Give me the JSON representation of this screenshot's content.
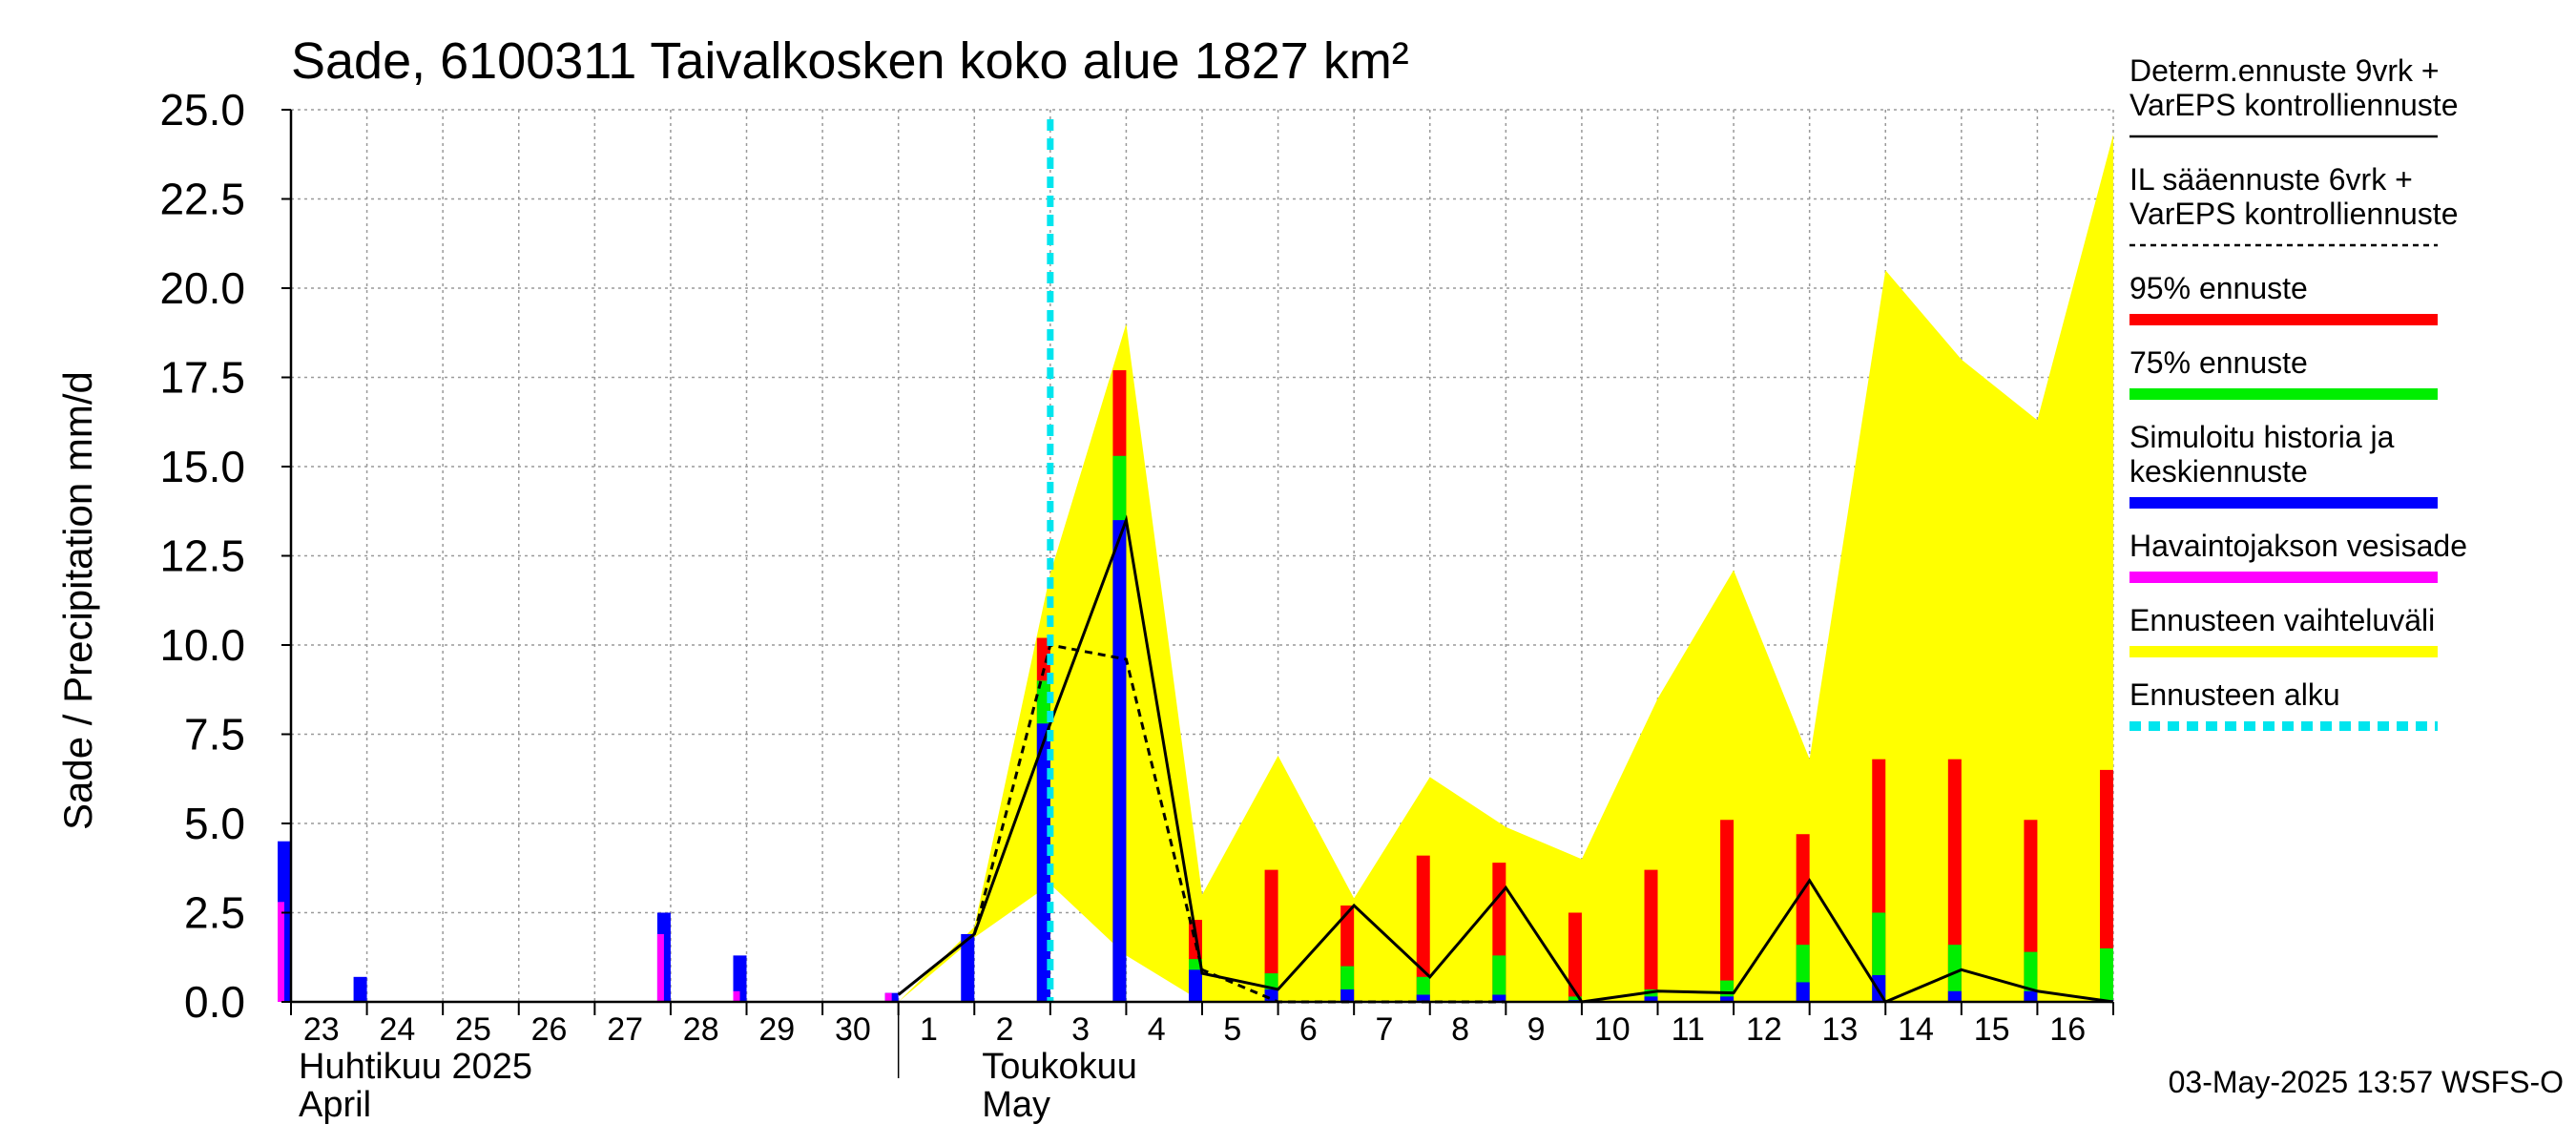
{
  "chart_data": {
    "type": "bar",
    "title": "Sade, 6100311 Taivalkosken koko alue 1827 km²",
    "ylabel": "Sade / Precipitation   mm/d",
    "ylim": [
      0,
      25
    ],
    "yticks": [
      "0.0",
      "2.5",
      "5.0",
      "7.5",
      "10.0",
      "12.5",
      "15.0",
      "17.5",
      "20.0",
      "22.5",
      "25.0"
    ],
    "grid": true,
    "legend_position": "right",
    "x_start": "2025-04-23",
    "x_end": "2025-05-17",
    "x_tick_labels": [
      "23",
      "24",
      "25",
      "26",
      "27",
      "28",
      "29",
      "30",
      "1",
      "2",
      "3",
      "4",
      "5",
      "6",
      "7",
      "8",
      "9",
      "10",
      "11",
      "12",
      "13",
      "14",
      "15",
      "16"
    ],
    "month_labels": [
      {
        "date": "2025-04-23",
        "line1": "Huhtikuu  2025",
        "line2": "April"
      },
      {
        "date": "2025-05-02",
        "line1": "Toukokuu",
        "line2": "May"
      }
    ],
    "month_boundary": "2025-05-01",
    "forecast_start": "2025-05-03",
    "timestamp": "03-May-2025 13:57 WSFS-O",
    "legend": [
      {
        "label": "Determ.ennuste 9vrk +\nVarEPS kontrolliennuste",
        "color": "#000000",
        "style": "solid"
      },
      {
        "label": "IL sääennuste 6vrk  +\n  VarEPS kontrolliennuste",
        "color": "#000000",
        "style": "dashed"
      },
      {
        "label": "95% ennuste",
        "color": "#ff0000",
        "style": "thick"
      },
      {
        "label": "75% ennuste",
        "color": "#00ee00",
        "style": "thick"
      },
      {
        "label": "Simuloitu historia ja\nkeskiennuste",
        "color": "#0000ff",
        "style": "thick"
      },
      {
        "label": "Havaintojakson vesisade",
        "color": "#ff00ff",
        "style": "thick"
      },
      {
        "label": "Ennusteen vaihteluväli",
        "color": "#ffff00",
        "style": "thick"
      },
      {
        "label": "Ennusteen alku",
        "color": "#00e5ee",
        "style": "dotted"
      }
    ],
    "colors": {
      "p95": "#ff0000",
      "p75": "#00ee00",
      "median": "#0000ff",
      "observed": "#ff00ff",
      "range": "#ffff00",
      "forecast_start": "#00e5ee",
      "grid": "#9a9a9a"
    },
    "series": [
      {
        "name": "Simuloitu historia ja keskiennuste",
        "x": [
          "2025-04-23",
          "2025-04-24",
          "2025-04-28",
          "2025-04-29",
          "2025-05-01",
          "2025-05-02",
          "2025-05-03",
          "2025-05-04",
          "2025-05-05",
          "2025-05-06",
          "2025-05-07",
          "2025-05-08",
          "2025-05-09",
          "2025-05-10",
          "2025-05-11",
          "2025-05-12",
          "2025-05-13",
          "2025-05-14",
          "2025-05-15",
          "2025-05-16",
          "2025-05-17"
        ],
        "values": [
          4.5,
          0.7,
          2.5,
          1.3,
          0.25,
          1.9,
          7.8,
          13.5,
          0.9,
          0.35,
          0.35,
          0.2,
          0.2,
          0.05,
          0.15,
          0.15,
          0.55,
          0.75,
          0.3,
          0.3,
          0.05
        ]
      },
      {
        "name": "Havaintojakson vesisade",
        "x": [
          "2025-04-23",
          "2025-04-28",
          "2025-04-29",
          "2025-05-01"
        ],
        "values": [
          2.8,
          1.9,
          0.3,
          0.25
        ]
      },
      {
        "name": "75% ennuste",
        "x": [
          "2025-05-03",
          "2025-05-04",
          "2025-05-05",
          "2025-05-06",
          "2025-05-07",
          "2025-05-08",
          "2025-05-09",
          "2025-05-10",
          "2025-05-11",
          "2025-05-12",
          "2025-05-13",
          "2025-05-14",
          "2025-05-15",
          "2025-05-16",
          "2025-05-17"
        ],
        "values": [
          9.0,
          15.3,
          1.2,
          0.8,
          1.0,
          0.7,
          1.3,
          0.15,
          0.35,
          0.6,
          1.6,
          2.5,
          1.6,
          1.4,
          1.5
        ]
      },
      {
        "name": "95% ennuste",
        "x": [
          "2025-05-03",
          "2025-05-04",
          "2025-05-05",
          "2025-05-06",
          "2025-05-07",
          "2025-05-08",
          "2025-05-09",
          "2025-05-10",
          "2025-05-11",
          "2025-05-12",
          "2025-05-13",
          "2025-05-14",
          "2025-05-15",
          "2025-05-16",
          "2025-05-17"
        ],
        "values": [
          10.2,
          17.7,
          2.3,
          3.7,
          2.7,
          4.1,
          3.9,
          2.5,
          3.7,
          5.1,
          4.7,
          6.8,
          6.8,
          5.1,
          6.5
        ]
      },
      {
        "name": "Determ.ennuste 9vrk + VarEPS kontrolliennuste",
        "x": [
          "2025-05-01",
          "2025-05-02",
          "2025-05-03",
          "2025-05-04",
          "2025-05-05",
          "2025-05-06",
          "2025-05-07",
          "2025-05-08",
          "2025-05-09",
          "2025-05-10",
          "2025-05-11",
          "2025-05-12",
          "2025-05-13",
          "2025-05-14",
          "2025-05-15",
          "2025-05-16",
          "2025-05-17"
        ],
        "values": [
          0.2,
          1.9,
          7.8,
          13.5,
          0.8,
          0.35,
          2.7,
          0.7,
          3.2,
          0.0,
          0.3,
          0.25,
          3.4,
          0.0,
          0.9,
          0.3,
          0.0
        ]
      },
      {
        "name": "IL sääennuste 6vrk + VarEPS kontrolliennuste",
        "x": [
          "2025-05-02",
          "2025-05-03",
          "2025-05-04",
          "2025-05-05",
          "2025-05-06",
          "2025-05-07",
          "2025-05-08",
          "2025-05-09"
        ],
        "values": [
          1.9,
          10.0,
          9.6,
          0.9,
          0.0,
          0.0,
          0.0,
          0.0
        ]
      },
      {
        "name": "Ennusteen vaihteluväli",
        "x": [
          "2025-05-01",
          "2025-05-02",
          "2025-05-03",
          "2025-05-04",
          "2025-05-05",
          "2025-05-06",
          "2025-05-07",
          "2025-05-08",
          "2025-05-09",
          "2025-05-10",
          "2025-05-11",
          "2025-05-12",
          "2025-05-13",
          "2025-05-14",
          "2025-05-15",
          "2025-05-16",
          "2025-05-17"
        ],
        "upper": [
          0.0,
          2.1,
          12.0,
          19.0,
          3.0,
          6.9,
          2.9,
          6.3,
          4.9,
          4.0,
          8.5,
          12.1,
          6.8,
          20.5,
          18.0,
          16.3,
          24.3
        ],
        "lower": [
          0.0,
          1.8,
          3.3,
          1.3,
          0.0,
          0.0,
          0.0,
          0.0,
          0.0,
          0.0,
          0.0,
          0.0,
          0.0,
          0.0,
          0.0,
          0.0,
          0.0
        ]
      }
    ]
  }
}
